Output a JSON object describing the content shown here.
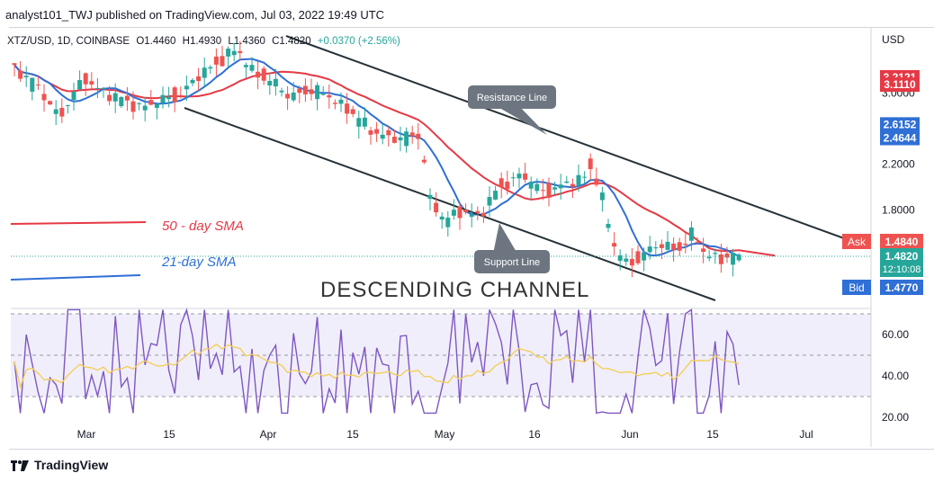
{
  "header": {
    "text": "analyst101_TWJ published on TradingView.com, Jul 03, 2022 19:49 UTC"
  },
  "symbol_bar": {
    "symbol": "XTZ/USD, 1D, COINBASE",
    "open": "O1.4460",
    "high": "H1.4930",
    "low": "L1.4360",
    "close": "C1.4820",
    "change": "+0.0370 (+2.56%)"
  },
  "footer": {
    "brand": "TradingView"
  },
  "colors": {
    "up": "#26a69a",
    "down": "#ef5350",
    "sma50": "#e53945",
    "sma21": "#2f6fd6",
    "channel": "#263238",
    "rsi": "#7e57c2",
    "rsi_ma": "#f2cf5b",
    "rsi_band": "#f1eefb"
  },
  "chart_data": [
    {
      "type": "candlestick",
      "title": "XTZ/USD, 1D, COINBASE",
      "ylabel": "USD",
      "y_scale": "log",
      "ylim": [
        1.2,
        4.0
      ],
      "y_ticks": [
        "3.0000",
        "2.2000",
        "1.8000"
      ],
      "x_ticks": [
        "Mar",
        "15",
        "Apr",
        "15",
        "May",
        "16",
        "Jun",
        "15",
        "Jul"
      ],
      "price_labels": [
        {
          "text": "3.2121",
          "value": 3.2121,
          "color": "#e53945"
        },
        {
          "text": "3.1110",
          "value": 3.111,
          "color": "#e53945"
        },
        {
          "text": "2.6152",
          "value": 2.6152,
          "color": "#2f6fd6"
        },
        {
          "text": "2.4644",
          "value": 2.4644,
          "color": "#2f6fd6"
        }
      ],
      "ask": {
        "label": "Ask",
        "value": "1.4840"
      },
      "last": {
        "value": "1.4820",
        "countdown": "12:10:08"
      },
      "bid": {
        "label": "Bid",
        "value": "1.4770"
      },
      "annotations": {
        "sma50_label": "50 - day SMA",
        "sma21_label": "21-day SMA",
        "channel_label": "DESCENDING  CHANNEL",
        "resistance_label": "Resistance Line",
        "support_label": "Support Line"
      },
      "series": [
        {
          "name": "50 - day SMA",
          "type": "line"
        },
        {
          "name": "21-day SMA",
          "type": "line"
        }
      ]
    },
    {
      "type": "line",
      "ylim": [
        15,
        80
      ],
      "y_ticks": [
        "60.00",
        "40.00",
        "20.00"
      ],
      "bands": [
        30,
        50,
        70
      ],
      "series": [
        {
          "type": "line"
        },
        {
          "type": "line"
        }
      ]
    }
  ]
}
